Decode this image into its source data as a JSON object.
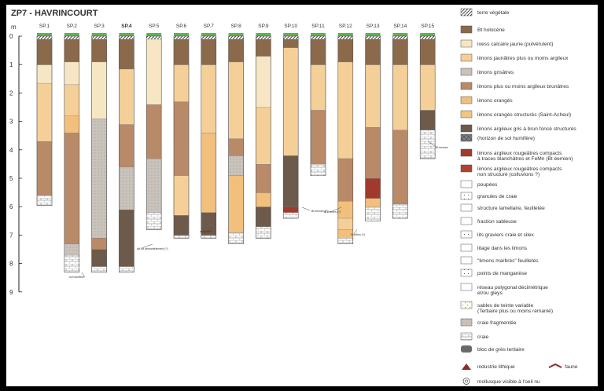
{
  "title": "ZP7 - HAVRINCOURT",
  "axis": {
    "unit": "m",
    "ticks": [
      "0",
      "1",
      "2",
      "3",
      "4",
      "5",
      "6",
      "7",
      "8",
      "9"
    ]
  },
  "colors": {
    "bt": "#8a6a4a",
    "loess": "#f6e6c3",
    "lj": "#f5cf98",
    "lg": "#c9c3bc",
    "lb": "#b98a68",
    "lo": "#f2bf7c",
    "los": "#f3c67d",
    "lag": "#6d5a4a",
    "lr": "#a13a2c",
    "chalk": "#ffffff",
    "sand": "#fffdf0",
    "grass": "#5cb54a"
  },
  "sections": [
    {
      "name": "SP.1",
      "bold": false,
      "depth": 5.85,
      "layers": [
        [
          "bt",
          0,
          0.9
        ],
        [
          "loess",
          0.9,
          1.55
        ],
        [
          "lj",
          1.55,
          3.6
        ],
        [
          "lb",
          3.6,
          5.5
        ],
        [
          "chalk",
          5.5,
          5.85
        ]
      ]
    },
    {
      "name": "SP.2",
      "bold": false,
      "depth": 8.2,
      "layers": [
        [
          "bt",
          0,
          0.8
        ],
        [
          "loess",
          0.8,
          1.6
        ],
        [
          "lj",
          1.6,
          2.7
        ],
        [
          "lo",
          2.7,
          3.3
        ],
        [
          "lb",
          3.3,
          7.2
        ],
        [
          "lg",
          7.2,
          7.6
        ],
        [
          "chalk",
          7.6,
          8.2
        ]
      ]
    },
    {
      "name": "SP.3",
      "bold": false,
      "depth": 8.2,
      "layers": [
        [
          "bt",
          0,
          0.8
        ],
        [
          "loess",
          0.8,
          2.8
        ],
        [
          "lg",
          2.8,
          7.0
        ],
        [
          "lb",
          7.0,
          7.4
        ],
        [
          "lag",
          7.4,
          8.0
        ],
        [
          "chalk",
          8.0,
          8.2
        ]
      ]
    },
    {
      "name": "SP.4",
      "bold": true,
      "depth": 8.2,
      "layers": [
        [
          "bt",
          0,
          1.05
        ],
        [
          "lj",
          1.05,
          3.0
        ],
        [
          "lb",
          3.0,
          4.5
        ],
        [
          "lg",
          4.5,
          6.0
        ],
        [
          "lag",
          6.0,
          8.0
        ],
        [
          "chalk",
          8.0,
          8.2
        ]
      ]
    },
    {
      "name": "SP.5",
      "bold": false,
      "depth": 6.7,
      "layers": [
        [
          "loess",
          0,
          2.3
        ],
        [
          "lb",
          2.3,
          4.2
        ],
        [
          "lg",
          4.2,
          6.1
        ],
        [
          "chalk",
          6.1,
          6.7
        ]
      ]
    },
    {
      "name": "SP.6",
      "bold": false,
      "depth": 7.0,
      "layers": [
        [
          "bt",
          0,
          0.9
        ],
        [
          "lj",
          0.9,
          2.2
        ],
        [
          "lb",
          2.2,
          4.8
        ],
        [
          "lj",
          4.8,
          6.2
        ],
        [
          "lag",
          6.2,
          6.9
        ],
        [
          "chalk",
          6.9,
          7.0
        ]
      ]
    },
    {
      "name": "SP.7",
      "bold": false,
      "depth": 7.0,
      "layers": [
        [
          "bt",
          0,
          0.9
        ],
        [
          "lj",
          0.9,
          3.3
        ],
        [
          "lo",
          3.3,
          6.1
        ],
        [
          "lag",
          6.1,
          6.9
        ],
        [
          "chalk",
          6.9,
          7.0
        ]
      ]
    },
    {
      "name": "SP.8",
      "bold": false,
      "depth": 7.2,
      "layers": [
        [
          "bt",
          0,
          0.8
        ],
        [
          "lj",
          0.8,
          3.5
        ],
        [
          "lb",
          3.5,
          4.1
        ],
        [
          "lg",
          4.1,
          4.8
        ],
        [
          "lo",
          4.8,
          6.8
        ],
        [
          "chalk",
          6.8,
          7.2
        ]
      ]
    },
    {
      "name": "SP.9",
      "bold": false,
      "depth": 7.0,
      "layers": [
        [
          "bt",
          0,
          0.6
        ],
        [
          "loess",
          0.6,
          2.4
        ],
        [
          "lj",
          2.4,
          4.4
        ],
        [
          "lb",
          4.4,
          5.4
        ],
        [
          "lo",
          5.4,
          5.9
        ],
        [
          "lag",
          5.9,
          6.6
        ],
        [
          "chalk",
          6.6,
          7.0
        ]
      ]
    },
    {
      "name": "SP.10",
      "bold": false,
      "depth": 6.3,
      "layers": [
        [
          "bt",
          0,
          0.3
        ],
        [
          "lj",
          0.3,
          4.1
        ],
        [
          "lag",
          4.1,
          5.9
        ],
        [
          "lr",
          5.9,
          6.1
        ],
        [
          "chalk",
          6.1,
          6.3
        ]
      ]
    },
    {
      "name": "SP.11",
      "bold": false,
      "depth": 4.8,
      "layers": [
        [
          "bt",
          0,
          0.9
        ],
        [
          "lj",
          0.9,
          2.5
        ],
        [
          "lb",
          2.5,
          4.4
        ],
        [
          "chalk",
          4.4,
          4.8
        ]
      ]
    },
    {
      "name": "SP.12",
      "bold": false,
      "depth": 7.2,
      "layers": [
        [
          "bt",
          0,
          0.8
        ],
        [
          "lj",
          0.8,
          4.2
        ],
        [
          "lb",
          4.2,
          5.7
        ],
        [
          "lo",
          5.7,
          6.3
        ],
        [
          "lj",
          6.3,
          6.7
        ],
        [
          "lo",
          6.7,
          7.0
        ],
        [
          "chalk",
          7.0,
          7.2
        ]
      ]
    },
    {
      "name": "SP.13",
      "bold": false,
      "depth": 6.4,
      "layers": [
        [
          "bt",
          0,
          0.9
        ],
        [
          "lj",
          0.9,
          3.1
        ],
        [
          "lb",
          3.1,
          4.9
        ],
        [
          "lr",
          4.9,
          5.6
        ],
        [
          "lo",
          5.6,
          5.9
        ],
        [
          "chalk",
          5.9,
          6.4
        ]
      ]
    },
    {
      "name": "SP.14",
      "bold": false,
      "depth": 6.3,
      "layers": [
        [
          "bt",
          0,
          0.9
        ],
        [
          "lj",
          0.9,
          3.2
        ],
        [
          "lb",
          3.2,
          5.8
        ],
        [
          "chalk",
          5.8,
          6.3
        ]
      ]
    },
    {
      "name": "SP.15",
      "bold": false,
      "depth": 4.2,
      "layers": [
        [
          "bt",
          0,
          0.9
        ],
        [
          "lj",
          0.9,
          2.5
        ],
        [
          "lag",
          2.5,
          3.2
        ],
        [
          "chalk",
          3.2,
          4.2
        ]
      ]
    }
  ],
  "annotations": {
    "sol_humifere": "sol humifère",
    "bt_demantele": "silt de démantèlement (?)",
    "sol_tiphon": "sol tiphon",
    "bt_eemien_10": "Bt éemien (?)",
    "bt_eemien_12": "Bt éemien (?)",
    "bulle": "Soufflon (?)",
    "bt_eemien_15": "Bt éemien"
  },
  "legend": [
    {
      "key": "terre",
      "label": "terre végétale",
      "label2": ""
    },
    {
      "key": "bt",
      "label": "Bt holocène",
      "label2": ""
    },
    {
      "key": "loess",
      "label": "loess calcaire jaune (pulvérulent)",
      "label2": ""
    },
    {
      "key": "lj",
      "label": "limons jaunâtres plus ou moins argileux",
      "label2": ""
    },
    {
      "key": "lg",
      "label": "limons grisâtres",
      "label2": ""
    },
    {
      "key": "lb",
      "label": "limons plus ou moins argileux brunâtres",
      "label2": ""
    },
    {
      "key": "lo",
      "label": "limons orangés",
      "label2": ""
    },
    {
      "key": "los",
      "label": "limons orangés  structurés (Saint-Acheul)",
      "label2": ""
    },
    {
      "key": "lag",
      "label": "limons argileux gris à brun foncé structurés",
      "label2": ""
    },
    {
      "key": "horizon",
      "label": "(horizon de sol humifère)",
      "label2": ""
    },
    {
      "key": "lr",
      "label": "limons argileux rougeâtres compacts",
      "label2": "à traces blanchâtres  et FeMn (Bt éemien)"
    },
    {
      "key": "lrn",
      "label": "limons argileux rougeâtres compacts",
      "label2": "non structuré (colluvions ?)"
    },
    {
      "key": "poupees",
      "label": "poupées",
      "label2": ""
    },
    {
      "key": "granules",
      "label": "granules de craie",
      "label2": ""
    },
    {
      "key": "lamellaire",
      "label": "structure lamellaire, feuilletée",
      "label2": ""
    },
    {
      "key": "sableuse",
      "label": "fraction sableuse",
      "label2": ""
    },
    {
      "key": "graviers",
      "label": "lits graviers craie et silex",
      "label2": ""
    },
    {
      "key": "litage",
      "label": "litage dans les limons",
      "label2": ""
    },
    {
      "key": "marbres",
      "label": "\"limons marbrés\" feuilletés",
      "label2": ""
    },
    {
      "key": "manganese",
      "label": "points de manganèse",
      "label2": ""
    },
    {
      "key": "reseau",
      "label": "réseau polygonal décimétrique",
      "label2": "et/ou gleys"
    },
    {
      "key": "sables",
      "label": "sables de teinte variable",
      "label2": "(Tertiaire plus ou moins remanié)"
    },
    {
      "key": "craief",
      "label": "craie fragmentée",
      "label2": ""
    },
    {
      "key": "craie",
      "label": "craie",
      "label2": ""
    },
    {
      "key": "gres",
      "label": "bloc de grès tertiaire",
      "label2": ""
    },
    {
      "key": "industrie",
      "label": "industrie lithique",
      "label2": ""
    },
    {
      "key": "mollusque",
      "label": "mollusque visible à l'oeil nu",
      "label2": ""
    }
  ],
  "faune_label": "faune"
}
